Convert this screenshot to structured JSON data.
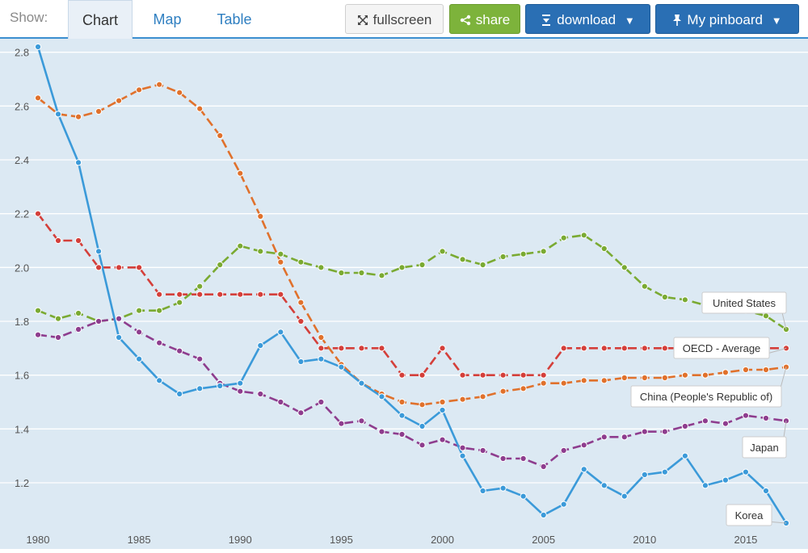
{
  "toolbar": {
    "show_label": "Show:",
    "tabs": [
      {
        "label": "Chart",
        "active": true
      },
      {
        "label": "Map",
        "active": false
      },
      {
        "label": "Table",
        "active": false
      }
    ],
    "fullscreen_label": "fullscreen",
    "share_label": "share",
    "download_label": "download",
    "pinboard_label": "My pinboard",
    "fullscreen_icon": "expand-arrows-icon",
    "share_icon": "share-icon",
    "download_icon": "download-icon",
    "pinboard_icon": "pin-icon",
    "dropdown_icon": "caret-down-icon"
  },
  "colors": {
    "background": "#dce9f3",
    "gridline": "#ffffff",
    "tab_link": "#2f7fc1",
    "share_green": "#7db33b",
    "button_blue": "#2a6fb4"
  },
  "chart_data": {
    "type": "line",
    "title": "",
    "xlabel": "",
    "ylabel": "",
    "xlim": [
      1980,
      2017
    ],
    "ylim": [
      1.05,
      2.85
    ],
    "x_ticks": [
      1980,
      1985,
      1990,
      1995,
      2000,
      2005,
      2010,
      2015
    ],
    "y_ticks": [
      1.2,
      1.4,
      1.6,
      1.8,
      2.0,
      2.2,
      2.4,
      2.6,
      2.8
    ],
    "y_tick_labels": [
      "1.2",
      "1.4",
      "1.6",
      "1.8",
      "2.0",
      "2.2",
      "2.4",
      "2.6",
      "2.8"
    ],
    "grid": true,
    "x": [
      1980,
      1981,
      1982,
      1983,
      1984,
      1985,
      1986,
      1987,
      1988,
      1989,
      1990,
      1991,
      1992,
      1993,
      1994,
      1995,
      1996,
      1997,
      1998,
      1999,
      2000,
      2001,
      2002,
      2003,
      2004,
      2005,
      2006,
      2007,
      2008,
      2009,
      2010,
      2011,
      2012,
      2013,
      2014,
      2015,
      2016,
      2017
    ],
    "series": [
      {
        "name": "United States",
        "color": "#7aaa32",
        "style": "dashed",
        "values": [
          1.84,
          1.81,
          1.83,
          1.8,
          1.81,
          1.84,
          1.84,
          1.87,
          1.93,
          2.01,
          2.08,
          2.06,
          2.05,
          2.02,
          2.0,
          1.98,
          1.98,
          1.97,
          2.0,
          2.01,
          2.06,
          2.03,
          2.01,
          2.04,
          2.05,
          2.06,
          2.11,
          2.12,
          2.07,
          2.0,
          1.93,
          1.89,
          1.88,
          1.86,
          1.86,
          1.84,
          1.82,
          1.77
        ]
      },
      {
        "name": "OECD - Average",
        "color": "#d43f3a",
        "style": "dashed",
        "values": [
          2.2,
          2.1,
          2.1,
          2.0,
          2.0,
          2.0,
          1.9,
          1.9,
          1.9,
          1.9,
          1.9,
          1.9,
          1.9,
          1.8,
          1.7,
          1.7,
          1.7,
          1.7,
          1.6,
          1.6,
          1.7,
          1.6,
          1.6,
          1.6,
          1.6,
          1.6,
          1.7,
          1.7,
          1.7,
          1.7,
          1.7,
          1.7,
          1.7,
          1.7,
          1.7,
          1.7,
          1.7,
          1.7
        ]
      },
      {
        "name": "China (People's Republic of)",
        "color": "#e0712c",
        "style": "dashed",
        "values": [
          2.63,
          2.57,
          2.56,
          2.58,
          2.62,
          2.66,
          2.68,
          2.65,
          2.59,
          2.49,
          2.35,
          2.19,
          2.02,
          1.87,
          1.74,
          1.64,
          1.57,
          1.53,
          1.5,
          1.49,
          1.5,
          1.51,
          1.52,
          1.54,
          1.55,
          1.57,
          1.57,
          1.58,
          1.58,
          1.59,
          1.59,
          1.59,
          1.6,
          1.6,
          1.61,
          1.62,
          1.62,
          1.63
        ]
      },
      {
        "name": "Japan",
        "color": "#8e3d8e",
        "style": "dashed",
        "values": [
          1.75,
          1.74,
          1.77,
          1.8,
          1.81,
          1.76,
          1.72,
          1.69,
          1.66,
          1.57,
          1.54,
          1.53,
          1.5,
          1.46,
          1.5,
          1.42,
          1.43,
          1.39,
          1.38,
          1.34,
          1.36,
          1.33,
          1.32,
          1.29,
          1.29,
          1.26,
          1.32,
          1.34,
          1.37,
          1.37,
          1.39,
          1.39,
          1.41,
          1.43,
          1.42,
          1.45,
          1.44,
          1.43
        ]
      },
      {
        "name": "Korea",
        "color": "#3b9ad9",
        "style": "solid",
        "values": [
          2.82,
          2.57,
          2.39,
          2.06,
          1.74,
          1.66,
          1.58,
          1.53,
          1.55,
          1.56,
          1.57,
          1.71,
          1.76,
          1.65,
          1.66,
          1.63,
          1.57,
          1.52,
          1.45,
          1.41,
          1.47,
          1.3,
          1.17,
          1.18,
          1.15,
          1.08,
          1.12,
          1.25,
          1.19,
          1.15,
          1.23,
          1.24,
          1.3,
          1.19,
          1.21,
          1.24,
          1.17,
          1.05
        ]
      }
    ]
  }
}
